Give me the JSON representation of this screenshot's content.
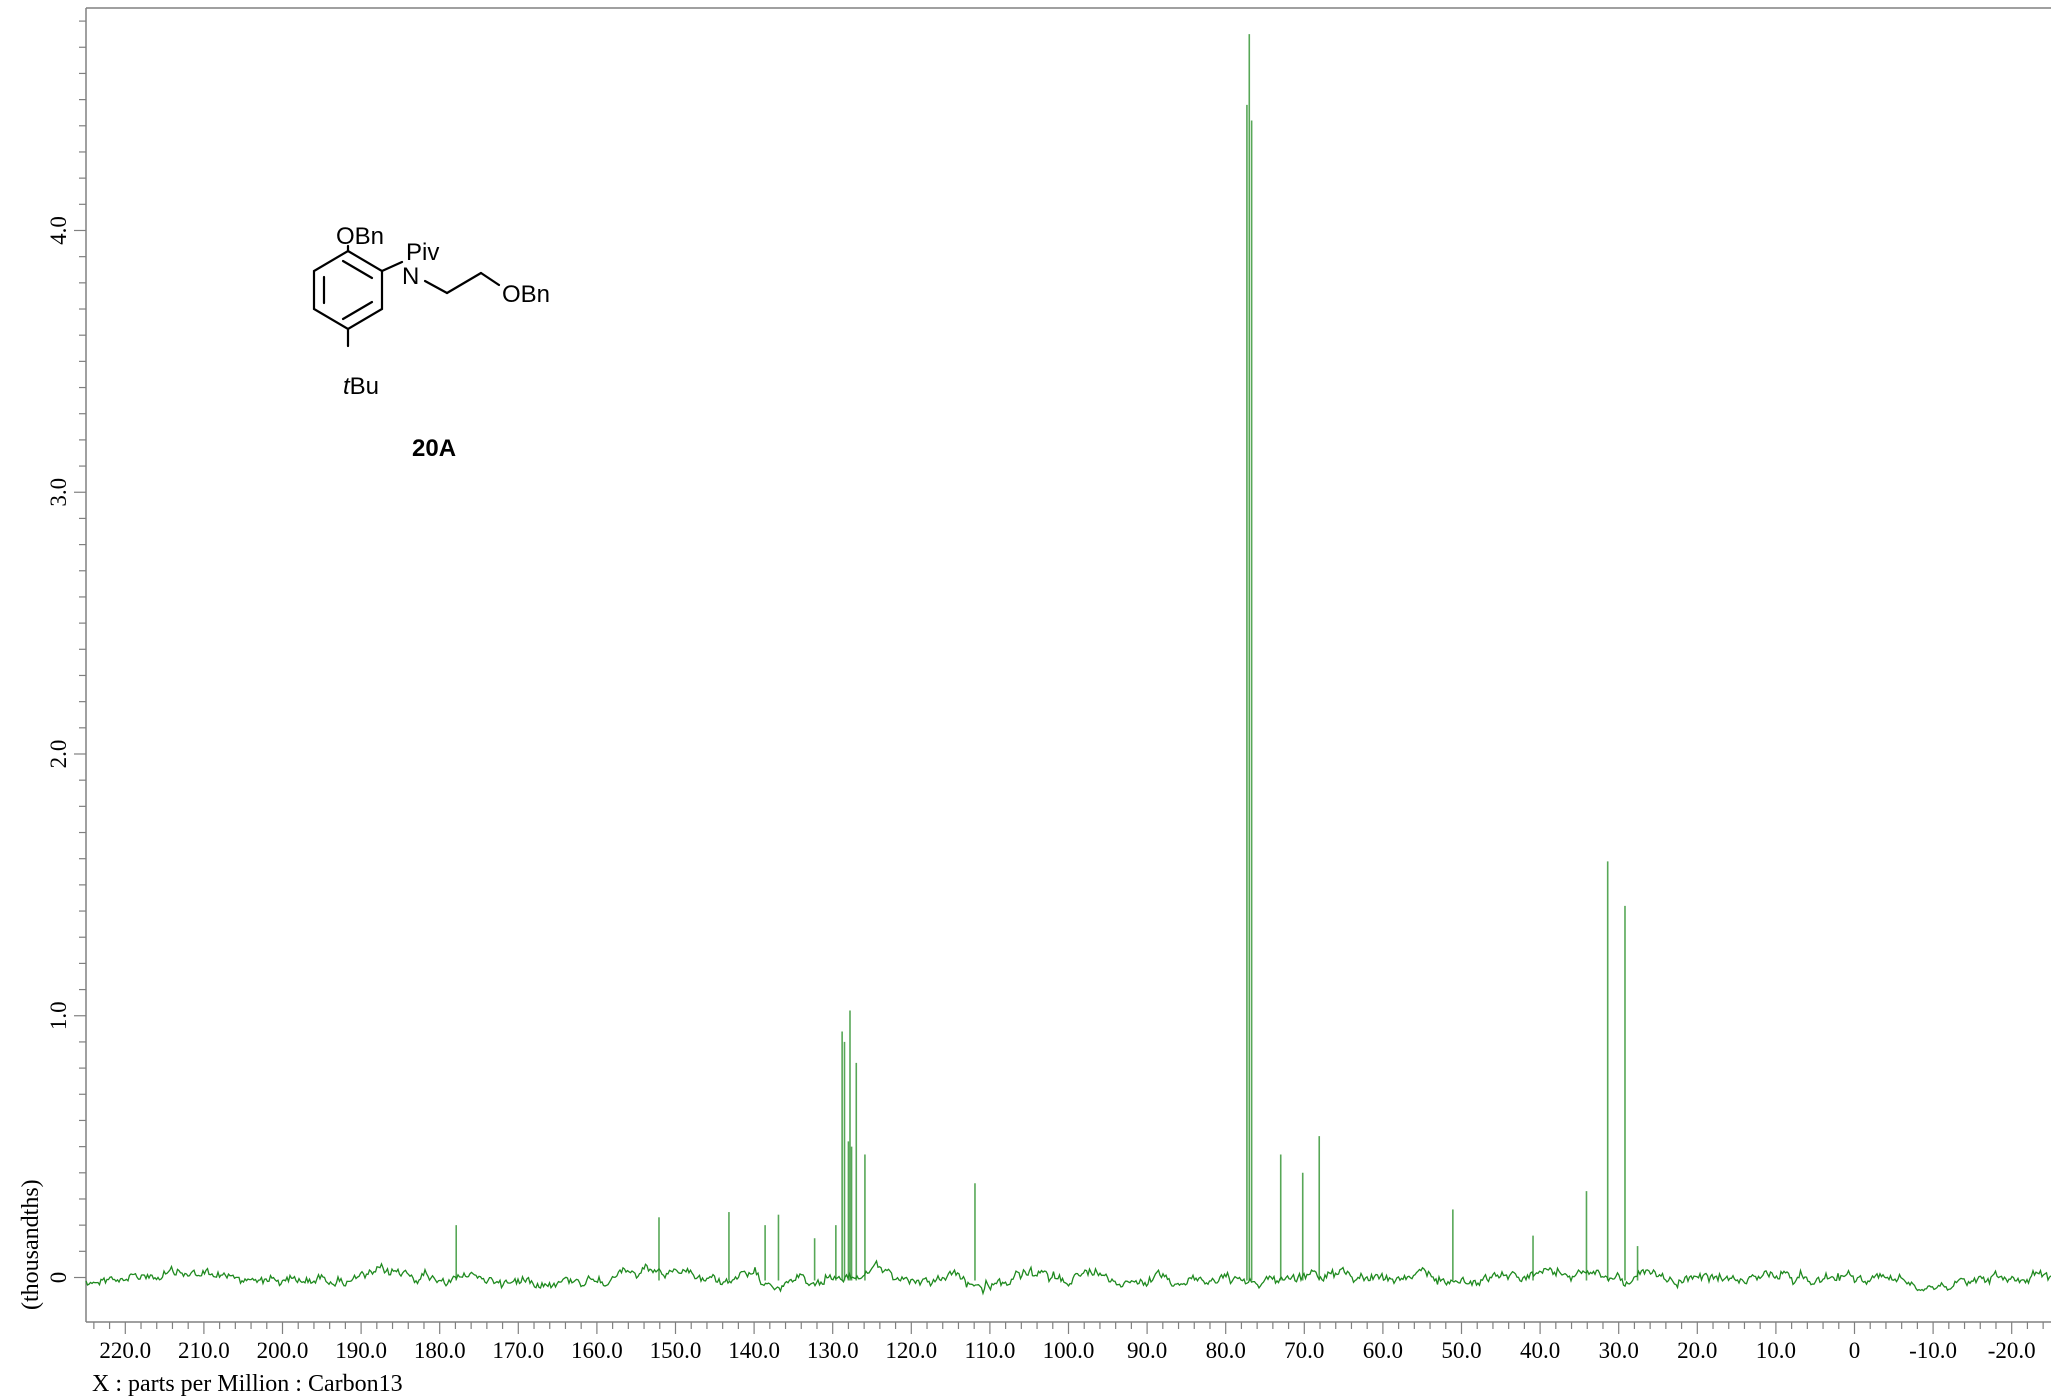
{
  "chart_data": {
    "type": "line",
    "title": "",
    "xlabel": "X : parts per Million : Carbon13",
    "ylabel": "(thousandths)",
    "xlim": [
      225.0,
      -25.0
    ],
    "ylim": [
      -0.17,
      4.85
    ],
    "x_ticks": [
      220.0,
      210.0,
      200.0,
      190.0,
      180.0,
      170.0,
      160.0,
      150.0,
      140.0,
      130.0,
      120.0,
      110.0,
      100.0,
      90.0,
      80.0,
      70.0,
      60.0,
      50.0,
      40.0,
      30.0,
      20.0,
      10.0,
      0,
      -10.0,
      -20.0
    ],
    "x_tick_labels": [
      "220.0",
      "210.0",
      "200.0",
      "190.0",
      "180.0",
      "170.0",
      "160.0",
      "150.0",
      "140.0",
      "130.0",
      "120.0",
      "110.0",
      "100.0",
      "90.0",
      "80.0",
      "70.0",
      "60.0",
      "50.0",
      "40.0",
      "30.0",
      "20.0",
      "10.0",
      "0",
      "-10.0",
      "-20.0"
    ],
    "y_ticks": [
      0,
      1.0,
      2.0,
      3.0,
      4.0
    ],
    "y_tick_labels": [
      "0",
      "1.0",
      "2.0",
      "3.0",
      "4.0"
    ],
    "grid": false,
    "line_color": "#1f8a1f",
    "peaks": [
      {
        "ppm": 177.9,
        "intensity": 0.2
      },
      {
        "ppm": 152.1,
        "intensity": 0.23
      },
      {
        "ppm": 143.2,
        "intensity": 0.25
      },
      {
        "ppm": 138.6,
        "intensity": 0.2
      },
      {
        "ppm": 136.9,
        "intensity": 0.24
      },
      {
        "ppm": 132.3,
        "intensity": 0.15
      },
      {
        "ppm": 129.6,
        "intensity": 0.2
      },
      {
        "ppm": 128.8,
        "intensity": 0.94
      },
      {
        "ppm": 128.5,
        "intensity": 0.9
      },
      {
        "ppm": 128.0,
        "intensity": 0.52
      },
      {
        "ppm": 127.8,
        "intensity": 1.02
      },
      {
        "ppm": 127.6,
        "intensity": 0.5
      },
      {
        "ppm": 127.0,
        "intensity": 0.82
      },
      {
        "ppm": 125.9,
        "intensity": 0.47
      },
      {
        "ppm": 111.9,
        "intensity": 0.36
      },
      {
        "ppm": 77.3,
        "intensity": 4.48
      },
      {
        "ppm": 77.0,
        "intensity": 4.75
      },
      {
        "ppm": 76.7,
        "intensity": 4.42
      },
      {
        "ppm": 73.0,
        "intensity": 0.47
      },
      {
        "ppm": 70.2,
        "intensity": 0.4
      },
      {
        "ppm": 68.1,
        "intensity": 0.54
      },
      {
        "ppm": 51.1,
        "intensity": 0.26
      },
      {
        "ppm": 40.9,
        "intensity": 0.16
      },
      {
        "ppm": 34.1,
        "intensity": 0.33
      },
      {
        "ppm": 31.4,
        "intensity": 1.59
      },
      {
        "ppm": 29.2,
        "intensity": 1.42
      },
      {
        "ppm": 27.6,
        "intensity": 0.12
      }
    ]
  },
  "structure": {
    "substituent_top": "OBn",
    "nitrogen": "N",
    "acyl": "Piv",
    "chain_end": "OBn",
    "substituent_para_italic": "t",
    "substituent_para": "Bu",
    "compound_id": "20A"
  }
}
